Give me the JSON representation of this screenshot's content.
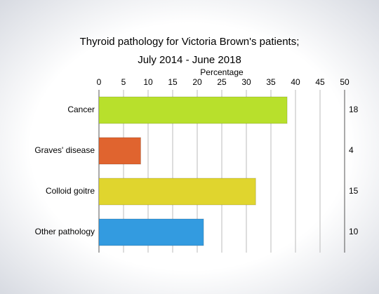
{
  "chart_data": {
    "type": "hbar",
    "title_lines": [
      "Thyroid pathology for Victoria Brown's patients;",
      "July 2014 - June 2018"
    ],
    "x_label": "Percentage",
    "categories": [
      "Cancer",
      "Graves' disease",
      "Colloid goitre",
      "Other pathology"
    ],
    "values": [
      38.3,
      8.5,
      31.9,
      21.3
    ],
    "colors": [
      "#b8e02c",
      "#e0642f",
      "#e0d52e",
      "#339be0"
    ],
    "counts": [
      18,
      4,
      15,
      10
    ],
    "xlim": [
      0,
      50
    ],
    "xticks": [
      0,
      5,
      10,
      15,
      20,
      25,
      30,
      35,
      40,
      45,
      50
    ],
    "grid": true
  }
}
